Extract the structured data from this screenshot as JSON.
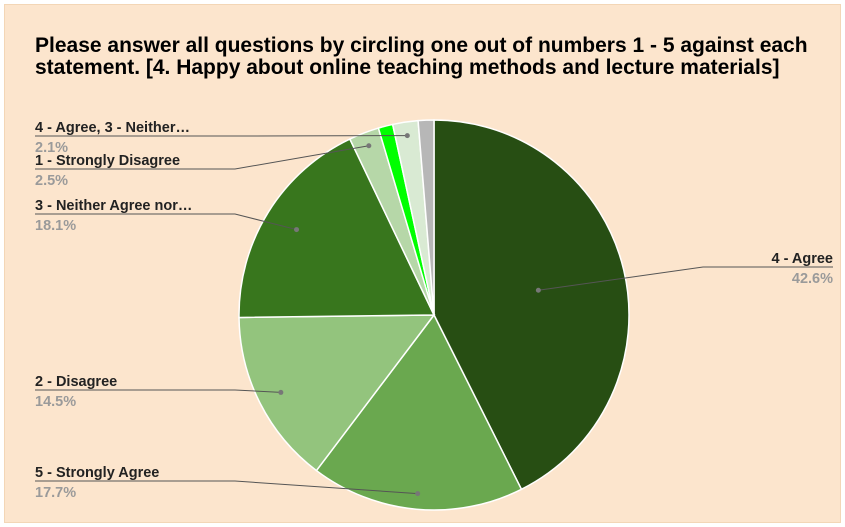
{
  "chart_data": {
    "type": "pie",
    "title": "Please answer all questions by circling one out of numbers 1 - 5 against each statement. [4. Happy about online teaching methods and lecture materials]",
    "slices": [
      {
        "label": "4 - Agree",
        "value": 42.6,
        "display": "42.6%",
        "color": "#274e13"
      },
      {
        "label": "5 - Strongly Agree",
        "value": 17.7,
        "display": "17.7%",
        "color": "#6aa84f"
      },
      {
        "label": "2 - Disagree",
        "value": 14.5,
        "display": "14.5%",
        "color": "#93c47d"
      },
      {
        "label": "3 - Neither Agree nor…",
        "value": 18.1,
        "display": "18.1%",
        "color": "#38761d"
      },
      {
        "label": "1 - Strongly Disagree",
        "value": 2.5,
        "display": "2.5%",
        "color": "#b6d7a8"
      },
      {
        "label": "",
        "value": 1.2,
        "display": "",
        "color": "#00ff00"
      },
      {
        "label": "4 - Agree, 3 - Neither…",
        "value": 2.1,
        "display": "2.1%",
        "color": "#d9ead3"
      },
      {
        "label": "",
        "value": 1.3,
        "display": "",
        "color": "#b7b7b7"
      }
    ],
    "legend": "none",
    "label_style": "outside labels with leader lines"
  }
}
